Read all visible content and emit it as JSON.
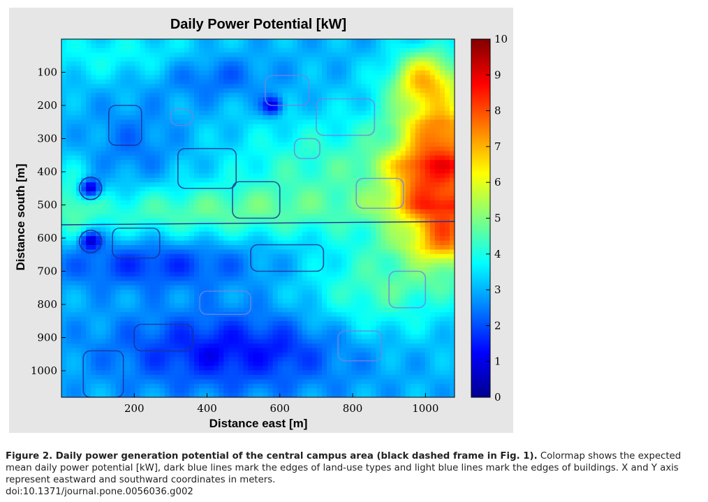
{
  "chart_data": {
    "type": "heatmap",
    "title": "Daily Power Potential [kW]",
    "xlabel": "Distance east [m]",
    "ylabel": "Distance south [m]",
    "xlim": [
      0,
      1080
    ],
    "ylim": [
      1080,
      0
    ],
    "x_ticks": [
      "200",
      "400",
      "600",
      "800",
      "1000"
    ],
    "y_ticks": [
      "100",
      "200",
      "300",
      "400",
      "500",
      "600",
      "700",
      "800",
      "900",
      "1000"
    ],
    "colorbar": {
      "min": 0,
      "max": 10,
      "ticks": [
        "0",
        "1",
        "2",
        "3",
        "4",
        "5",
        "6",
        "7",
        "8",
        "9",
        "10"
      ],
      "colormap": "jet"
    },
    "field_description": "mean daily power potential across the central campus",
    "hotspots": [
      {
        "x": 1000,
        "y": 420,
        "value": 9.0
      },
      {
        "x": 1050,
        "y": 580,
        "value": 9.3
      },
      {
        "x": 1000,
        "y": 130,
        "value": 8.2
      },
      {
        "x": 1040,
        "y": 300,
        "value": 8.8
      }
    ],
    "coldspots": [
      {
        "x": 80,
        "y": 450,
        "value": 0.8
      },
      {
        "x": 80,
        "y": 610,
        "value": 0.8
      },
      {
        "x": 580,
        "y": 200,
        "value": 0.9
      },
      {
        "x": 420,
        "y": 950,
        "value": 1.2
      },
      {
        "x": 600,
        "y": 940,
        "value": 1.4
      }
    ],
    "boundary_colors": {
      "land_use_edges": "#1f2f9a",
      "building_edges": "#6f86e0"
    }
  },
  "caption": {
    "label": "Figure 2. Daily power generation potential of the central campus area (black dashed frame in Fig. 1).",
    "text": "Colormap shows the expected mean daily power potential [kW], dark blue lines mark the edges of land-use types and light blue lines mark the edges of buildings. X and Y axis represent eastward and southward coordinates in meters.",
    "doi": "doi:10.1371/journal.pone.0056036.g002"
  }
}
